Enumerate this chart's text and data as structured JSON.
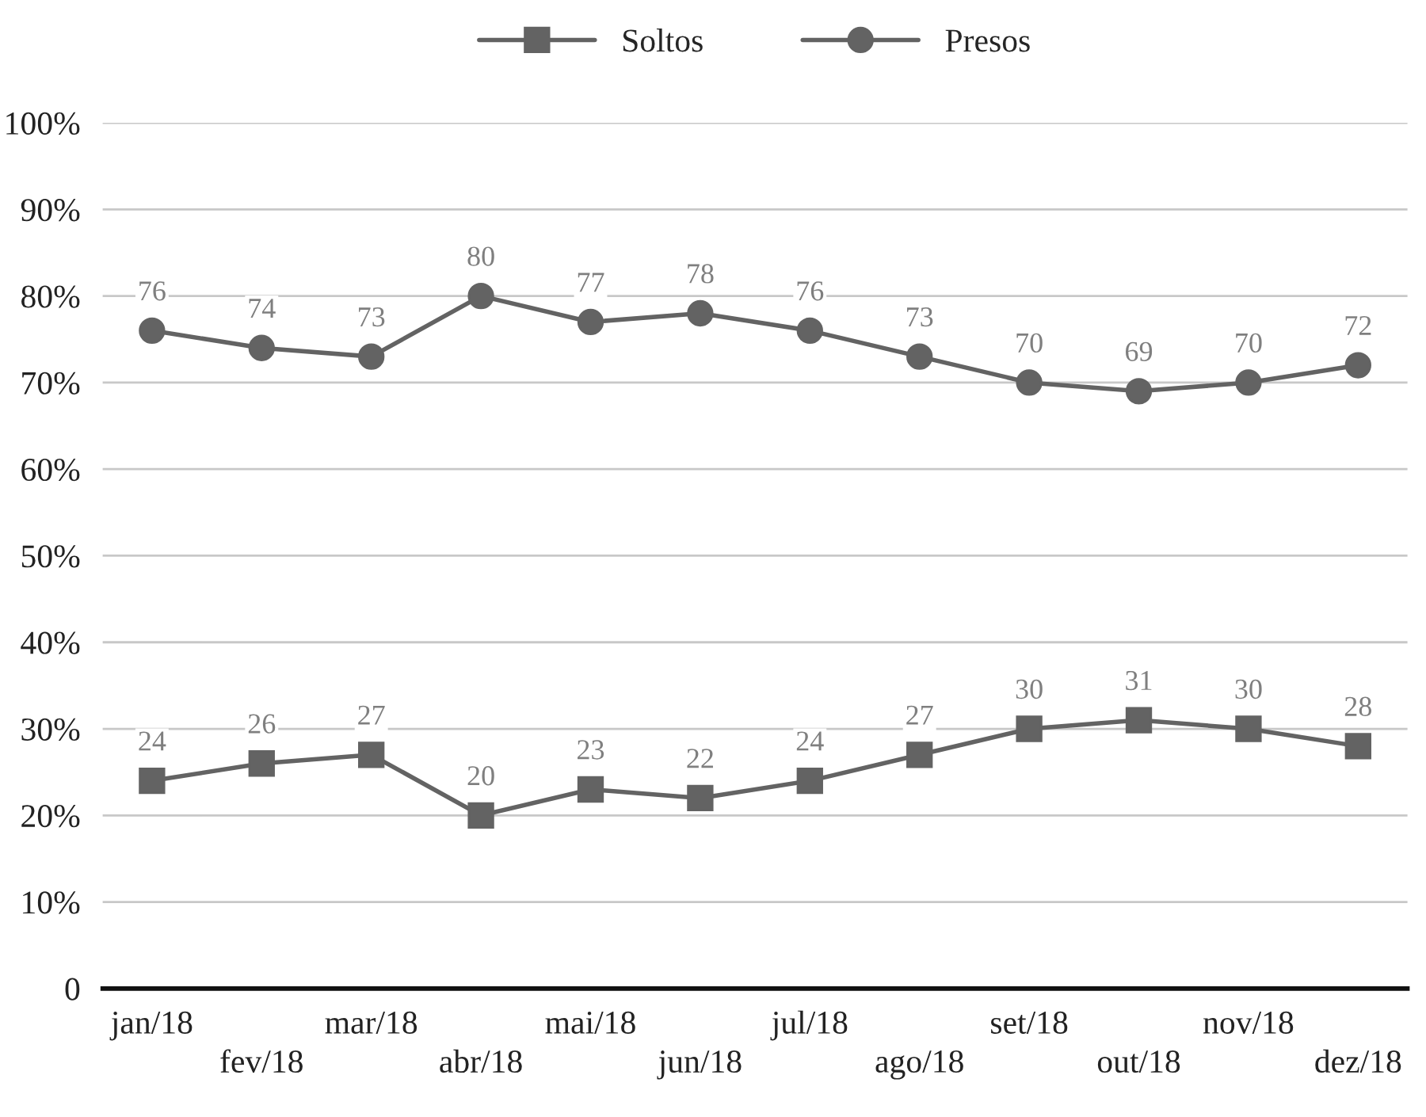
{
  "chart_data": {
    "type": "line",
    "categories": [
      "jan/18",
      "fev/18",
      "mar/18",
      "abr/18",
      "mai/18",
      "jun/18",
      "jul/18",
      "ago/18",
      "set/18",
      "out/18",
      "nov/18",
      "dez/18"
    ],
    "series": [
      {
        "name": "Soltos",
        "color": "#636363",
        "marker": "square",
        "values": [
          24,
          26,
          27,
          20,
          23,
          22,
          24,
          27,
          30,
          31,
          30,
          28
        ]
      },
      {
        "name": "Presos",
        "color": "#636363",
        "marker": "circle",
        "values": [
          76,
          74,
          73,
          80,
          77,
          78,
          76,
          73,
          70,
          69,
          70,
          72
        ]
      }
    ],
    "ylim": [
      0,
      100
    ],
    "yticks": [
      {
        "value": 0,
        "label": "0"
      },
      {
        "value": 10,
        "label": "10%"
      },
      {
        "value": 20,
        "label": "20%"
      },
      {
        "value": 30,
        "label": "30%"
      },
      {
        "value": 40,
        "label": "40%"
      },
      {
        "value": 50,
        "label": "50%"
      },
      {
        "value": 60,
        "label": "60%"
      },
      {
        "value": 70,
        "label": "70%"
      },
      {
        "value": 80,
        "label": "80%"
      },
      {
        "value": 90,
        "label": "90%"
      },
      {
        "value": 100,
        "label": "100%"
      }
    ],
    "grid": "y",
    "legend": "top",
    "data_labels": true,
    "line_style": "solid"
  }
}
